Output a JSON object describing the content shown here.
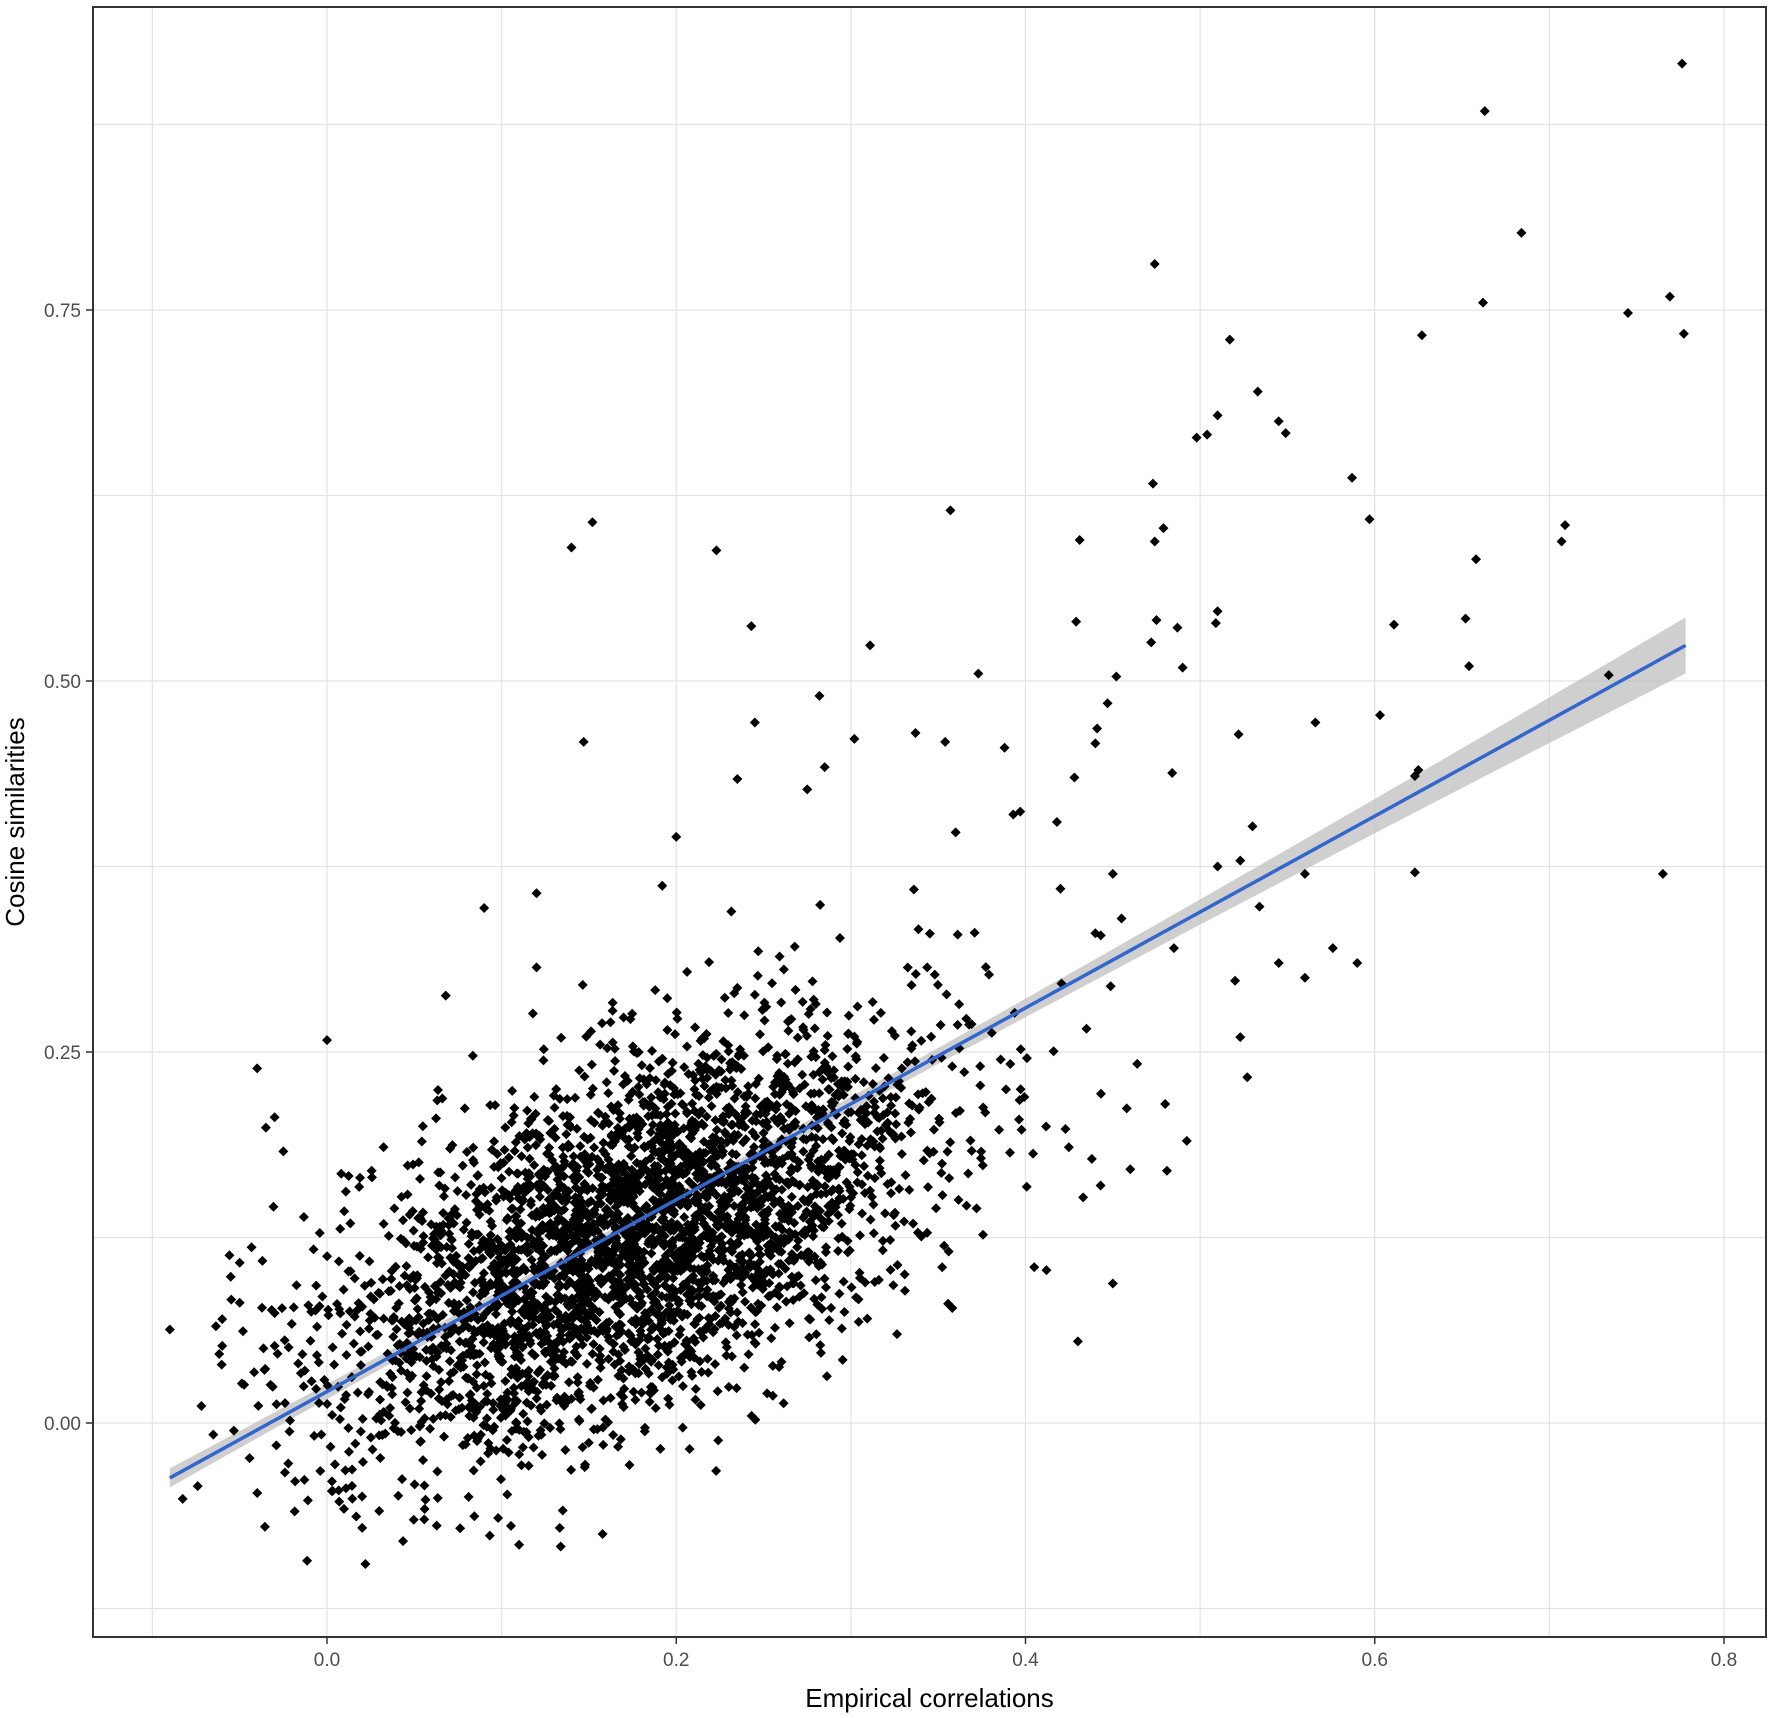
{
  "chart_data": {
    "type": "scatter",
    "title": "",
    "xlabel": "Empirical correlations",
    "ylabel": "Cosine similarities",
    "xlim": [
      -0.1,
      0.8
    ],
    "ylim": [
      -0.125,
      0.95
    ],
    "x_ticks": [
      0.0,
      0.2,
      0.4,
      0.6,
      0.8
    ],
    "x_tick_labels": [
      "0.0",
      "0.2",
      "0.4",
      "0.6",
      "0.8"
    ],
    "y_ticks": [
      0.0,
      0.25,
      0.5,
      0.75
    ],
    "y_tick_labels": [
      "0.00",
      "0.25",
      "0.50",
      "0.75"
    ],
    "grid": true,
    "point_color": "#000000",
    "point_shape": "diamond",
    "cluster": {
      "approx_count": 3600,
      "x_mean": 0.175,
      "y_mean": 0.125,
      "x_sd": 0.085,
      "y_sd": 0.07,
      "correlation": 0.55
    },
    "points": [
      [
        -0.09,
        0.063
      ],
      [
        -0.06,
        0.07
      ],
      [
        -0.06,
        0.052
      ],
      [
        -0.05,
        0.081
      ],
      [
        -0.05,
        0.108
      ],
      [
        -0.04,
        0.239
      ],
      [
        -0.035,
        0.199
      ],
      [
        -0.03,
        0.206
      ],
      [
        -0.025,
        0.183
      ],
      [
        -0.03,
        0.052
      ],
      [
        -0.03,
        0.074
      ],
      [
        0.0,
        0.258
      ],
      [
        0.002,
        -0.016
      ],
      [
        0.007,
        -0.053
      ],
      [
        0.022,
        -0.095
      ],
      [
        0.068,
        0.288
      ],
      [
        0.09,
        0.347
      ],
      [
        0.12,
        0.357
      ],
      [
        0.12,
        0.307
      ],
      [
        0.098,
        -0.064
      ],
      [
        0.11,
        -0.082
      ],
      [
        0.135,
        -0.059
      ],
      [
        0.14,
        0.59
      ],
      [
        0.152,
        0.607
      ],
      [
        0.147,
        0.459
      ],
      [
        0.2,
        0.395
      ],
      [
        0.192,
        0.362
      ],
      [
        0.223,
        0.588
      ],
      [
        0.235,
        0.434
      ],
      [
        0.243,
        0.537
      ],
      [
        0.245,
        0.472
      ],
      [
        0.282,
        0.49
      ],
      [
        0.285,
        0.442
      ],
      [
        0.275,
        0.427
      ],
      [
        0.302,
        0.461
      ],
      [
        0.311,
        0.524
      ],
      [
        0.357,
        0.615
      ],
      [
        0.373,
        0.505
      ],
      [
        0.337,
        0.465
      ],
      [
        0.354,
        0.459
      ],
      [
        0.388,
        0.455
      ],
      [
        0.393,
        0.41
      ],
      [
        0.397,
        0.412
      ],
      [
        0.36,
        0.398
      ],
      [
        0.431,
        0.595
      ],
      [
        0.429,
        0.54
      ],
      [
        0.474,
        0.781
      ],
      [
        0.473,
        0.633
      ],
      [
        0.474,
        0.594
      ],
      [
        0.479,
        0.603
      ],
      [
        0.472,
        0.526
      ],
      [
        0.475,
        0.541
      ],
      [
        0.487,
        0.536
      ],
      [
        0.49,
        0.509
      ],
      [
        0.452,
        0.503
      ],
      [
        0.484,
        0.438
      ],
      [
        0.447,
        0.485
      ],
      [
        0.441,
        0.468
      ],
      [
        0.44,
        0.458
      ],
      [
        0.418,
        0.405
      ],
      [
        0.428,
        0.435
      ],
      [
        0.498,
        0.664
      ],
      [
        0.504,
        0.666
      ],
      [
        0.51,
        0.679
      ],
      [
        0.517,
        0.73
      ],
      [
        0.509,
        0.539
      ],
      [
        0.51,
        0.547
      ],
      [
        0.522,
        0.464
      ],
      [
        0.533,
        0.695
      ],
      [
        0.545,
        0.675
      ],
      [
        0.549,
        0.667
      ],
      [
        0.587,
        0.637
      ],
      [
        0.597,
        0.609
      ],
      [
        0.611,
        0.538
      ],
      [
        0.566,
        0.472
      ],
      [
        0.603,
        0.477
      ],
      [
        0.627,
        0.733
      ],
      [
        0.662,
        0.755
      ],
      [
        0.663,
        0.884
      ],
      [
        0.684,
        0.802
      ],
      [
        0.658,
        0.582
      ],
      [
        0.652,
        0.542
      ],
      [
        0.654,
        0.51
      ],
      [
        0.709,
        0.605
      ],
      [
        0.707,
        0.594
      ],
      [
        0.625,
        0.44
      ],
      [
        0.623,
        0.436
      ],
      [
        0.623,
        0.371
      ],
      [
        0.56,
        0.37
      ],
      [
        0.534,
        0.348
      ],
      [
        0.53,
        0.402
      ],
      [
        0.523,
        0.379
      ],
      [
        0.51,
        0.375
      ],
      [
        0.545,
        0.31
      ],
      [
        0.576,
        0.32
      ],
      [
        0.59,
        0.31
      ],
      [
        0.56,
        0.3
      ],
      [
        0.52,
        0.298
      ],
      [
        0.523,
        0.26
      ],
      [
        0.527,
        0.233
      ],
      [
        0.734,
        0.504
      ],
      [
        0.745,
        0.748
      ],
      [
        0.769,
        0.759
      ],
      [
        0.776,
        0.916
      ],
      [
        0.777,
        0.734
      ],
      [
        0.765,
        0.37
      ],
      [
        0.43,
        0.055
      ],
      [
        0.45,
        0.094
      ],
      [
        0.405,
        0.105
      ],
      [
        0.412,
        0.103
      ],
      [
        0.48,
        0.215
      ],
      [
        0.458,
        0.212
      ],
      [
        0.464,
        0.242
      ],
      [
        0.481,
        0.17
      ],
      [
        0.46,
        0.171
      ],
      [
        0.443,
        0.16
      ],
      [
        0.438,
        0.178
      ],
      [
        0.433,
        0.152
      ],
      [
        0.45,
        0.37
      ],
      [
        0.42,
        0.36
      ],
      [
        0.44,
        0.33
      ],
      [
        0.485,
        0.32
      ],
      [
        0.455,
        0.34
      ]
    ],
    "trend": {
      "x": [
        -0.09,
        0.778
      ],
      "y": [
        -0.037,
        0.524
      ],
      "color": "#3366cc",
      "ci_color": "#bfbfbf"
    }
  }
}
